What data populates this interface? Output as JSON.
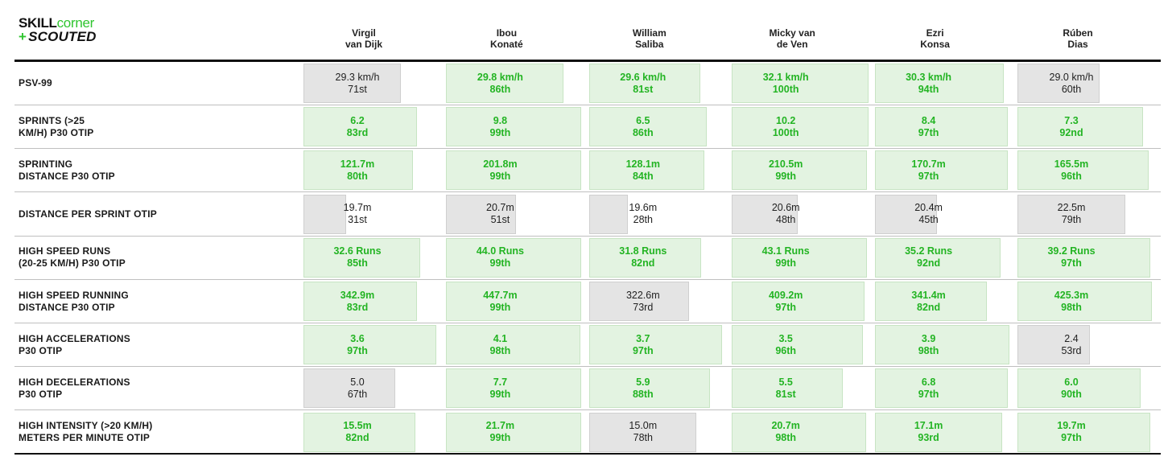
{
  "logo": {
    "line1_a": "SKILL",
    "line1_b": "corner",
    "line2_plus": "+",
    "line2": "SCOUTED"
  },
  "colors": {
    "high_bar": "#e3f3e1",
    "low_bar": "#e4e4e4",
    "high_text": "#23b423",
    "low_text": "#222222"
  },
  "chart_data": {
    "type": "table",
    "players": [
      {
        "line1": "Virgil",
        "line2": "van Dijk"
      },
      {
        "line1": "Ibou",
        "line2": "Konaté"
      },
      {
        "line1": "William",
        "line2": "Saliba"
      },
      {
        "line1": "Micky van",
        "line2": "de Ven"
      },
      {
        "line1": "Ezri",
        "line2": "Konsa"
      },
      {
        "line1": "Rúben",
        "line2": "Dias"
      }
    ],
    "metrics": [
      {
        "lines": [
          "PSV-99"
        ],
        "values": [
          {
            "value": "29.3 km/h",
            "rank": "71st",
            "percentile": 71
          },
          {
            "value": "29.8 km/h",
            "rank": "86th",
            "percentile": 86
          },
          {
            "value": "29.6 km/h",
            "rank": "81st",
            "percentile": 81
          },
          {
            "value": "32.1 km/h",
            "rank": "100th",
            "percentile": 100
          },
          {
            "value": "30.3 km/h",
            "rank": "94th",
            "percentile": 94
          },
          {
            "value": "29.0 km/h",
            "rank": "60th",
            "percentile": 60
          }
        ]
      },
      {
        "lines": [
          "SPRINTS (>25",
          "KM/H) P30 OTIP"
        ],
        "values": [
          {
            "value": "6.2",
            "rank": "83rd",
            "percentile": 83
          },
          {
            "value": "9.8",
            "rank": "99th",
            "percentile": 99
          },
          {
            "value": "6.5",
            "rank": "86th",
            "percentile": 86
          },
          {
            "value": "10.2",
            "rank": "100th",
            "percentile": 100
          },
          {
            "value": "8.4",
            "rank": "97th",
            "percentile": 97
          },
          {
            "value": "7.3",
            "rank": "92nd",
            "percentile": 92
          }
        ]
      },
      {
        "lines": [
          "SPRINTING",
          "DISTANCE P30 OTIP"
        ],
        "values": [
          {
            "value": "121.7m",
            "rank": "80th",
            "percentile": 80
          },
          {
            "value": "201.8m",
            "rank": "99th",
            "percentile": 99
          },
          {
            "value": "128.1m",
            "rank": "84th",
            "percentile": 84
          },
          {
            "value": "210.5m",
            "rank": "99th",
            "percentile": 99
          },
          {
            "value": "170.7m",
            "rank": "97th",
            "percentile": 97
          },
          {
            "value": "165.5m",
            "rank": "96th",
            "percentile": 96
          }
        ]
      },
      {
        "lines": [
          "DISTANCE PER SPRINT OTIP"
        ],
        "values": [
          {
            "value": "19.7m",
            "rank": "31st",
            "percentile": 31
          },
          {
            "value": "20.7m",
            "rank": "51st",
            "percentile": 51
          },
          {
            "value": "19.6m",
            "rank": "28th",
            "percentile": 28
          },
          {
            "value": "20.6m",
            "rank": "48th",
            "percentile": 48
          },
          {
            "value": "20.4m",
            "rank": "45th",
            "percentile": 45
          },
          {
            "value": "22.5m",
            "rank": "79th",
            "percentile": 79
          }
        ]
      },
      {
        "lines": [
          "HIGH SPEED RUNS",
          "(20-25 KM/H) P30 OTIP"
        ],
        "values": [
          {
            "value": "32.6 Runs",
            "rank": "85th",
            "percentile": 85
          },
          {
            "value": "44.0 Runs",
            "rank": "99th",
            "percentile": 99
          },
          {
            "value": "31.8 Runs",
            "rank": "82nd",
            "percentile": 82
          },
          {
            "value": "43.1 Runs",
            "rank": "99th",
            "percentile": 99
          },
          {
            "value": "35.2 Runs",
            "rank": "92nd",
            "percentile": 92
          },
          {
            "value": "39.2 Runs",
            "rank": "97th",
            "percentile": 97
          }
        ]
      },
      {
        "lines": [
          "HIGH SPEED RUNNING",
          "DISTANCE P30 OTIP"
        ],
        "values": [
          {
            "value": "342.9m",
            "rank": "83rd",
            "percentile": 83
          },
          {
            "value": "447.7m",
            "rank": "99th",
            "percentile": 99
          },
          {
            "value": "322.6m",
            "rank": "73rd",
            "percentile": 73
          },
          {
            "value": "409.2m",
            "rank": "97th",
            "percentile": 97
          },
          {
            "value": "341.4m",
            "rank": "82nd",
            "percentile": 82
          },
          {
            "value": "425.3m",
            "rank": "98th",
            "percentile": 98
          }
        ]
      },
      {
        "lines": [
          "HIGH ACCELERATIONS",
          "P30 OTIP"
        ],
        "values": [
          {
            "value": "3.6",
            "rank": "97th",
            "percentile": 97
          },
          {
            "value": "4.1",
            "rank": "98th",
            "percentile": 98
          },
          {
            "value": "3.7",
            "rank": "97th",
            "percentile": 97
          },
          {
            "value": "3.5",
            "rank": "96th",
            "percentile": 96
          },
          {
            "value": "3.9",
            "rank": "98th",
            "percentile": 98
          },
          {
            "value": "2.4",
            "rank": "53rd",
            "percentile": 53
          }
        ]
      },
      {
        "lines": [
          "HIGH DECELERATIONS",
          "P30 OTIP"
        ],
        "values": [
          {
            "value": "5.0",
            "rank": "67th",
            "percentile": 67
          },
          {
            "value": "7.7",
            "rank": "99th",
            "percentile": 99
          },
          {
            "value": "5.9",
            "rank": "88th",
            "percentile": 88
          },
          {
            "value": "5.5",
            "rank": "81st",
            "percentile": 81
          },
          {
            "value": "6.8",
            "rank": "97th",
            "percentile": 97
          },
          {
            "value": "6.0",
            "rank": "90th",
            "percentile": 90
          }
        ]
      },
      {
        "lines": [
          "HIGH INTENSITY (>20 KM/H)",
          "METERS PER MINUTE OTIP"
        ],
        "values": [
          {
            "value": "15.5m",
            "rank": "82nd",
            "percentile": 82
          },
          {
            "value": "21.7m",
            "rank": "99th",
            "percentile": 99
          },
          {
            "value": "15.0m",
            "rank": "78th",
            "percentile": 78
          },
          {
            "value": "20.7m",
            "rank": "98th",
            "percentile": 98
          },
          {
            "value": "17.1m",
            "rank": "93rd",
            "percentile": 93
          },
          {
            "value": "19.7m",
            "rank": "97th",
            "percentile": 97
          }
        ]
      }
    ],
    "bar_scale": [
      0,
      100
    ]
  }
}
